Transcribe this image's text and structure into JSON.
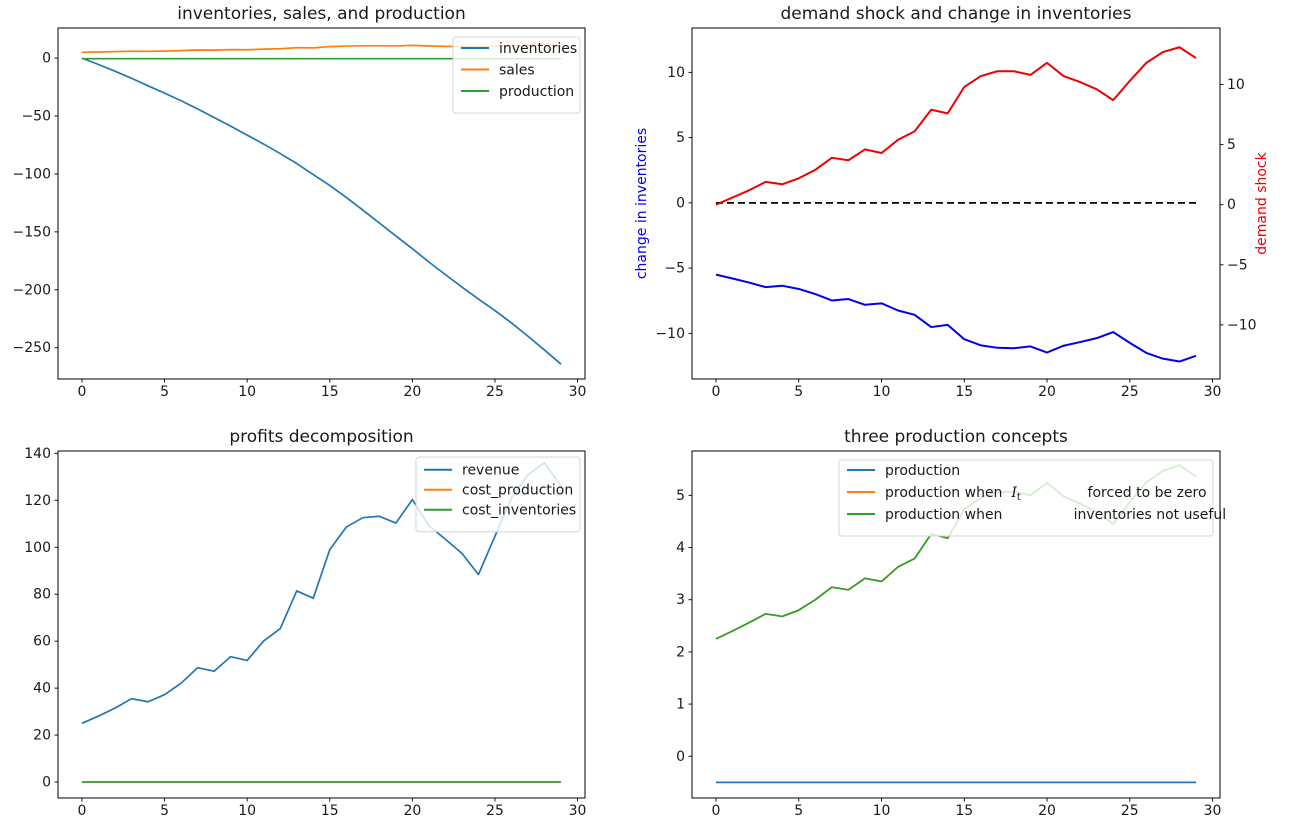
{
  "figure": {
    "background": "#ffffff"
  },
  "colors": {
    "tab_blue": "#1f77b4",
    "tab_orange": "#ff7f0e",
    "tab_green": "#2ca02c",
    "pure_blue": "#0000ee",
    "pure_red": "#ee0000",
    "black": "#000000",
    "axis_text": "#1a1a1a",
    "legend_border": "#d4d4d4"
  },
  "chart_data": [
    {
      "id": "top_left",
      "pos": "tl",
      "type": "line",
      "title": "inventories, sales, and production",
      "x": [
        0,
        1,
        2,
        3,
        4,
        5,
        6,
        7,
        8,
        9,
        10,
        11,
        12,
        13,
        14,
        15,
        16,
        17,
        18,
        19,
        20,
        21,
        22,
        23,
        24,
        25,
        26,
        27,
        28,
        29
      ],
      "xlim": [
        -1.45,
        30.45
      ],
      "ylim": [
        -277,
        26
      ],
      "xticks": [
        0,
        5,
        10,
        15,
        20,
        25,
        30
      ],
      "yticks": [
        0,
        -50,
        -100,
        -150,
        -200,
        -250
      ],
      "series": [
        {
          "name": "inventories",
          "color": "#1f77b4",
          "values": [
            0,
            -5.5,
            -11.3,
            -17.4,
            -23.9,
            -30.2,
            -36.8,
            -43.8,
            -51.3,
            -58.7,
            -66.5,
            -74.2,
            -82.4,
            -91.0,
            -100.5,
            -109.9,
            -120.3,
            -131.2,
            -142.3,
            -153.5,
            -164.5,
            -176.0,
            -186.9,
            -197.6,
            -208.0,
            -217.9,
            -228.6,
            -240.1,
            -252.0,
            -264.2
          ]
        },
        {
          "name": "sales",
          "color": "#ff7f0e",
          "values": [
            5.0,
            5.3,
            5.61,
            5.96,
            5.85,
            6.1,
            6.49,
            6.98,
            6.87,
            7.31,
            7.2,
            7.75,
            8.08,
            9.02,
            8.85,
            9.95,
            10.42,
            10.61,
            10.64,
            10.5,
            10.97,
            10.45,
            10.17,
            9.87,
            9.4,
            10.23,
            11.0,
            11.44,
            11.66,
            11.22
          ]
        },
        {
          "name": "production",
          "color": "#2ca02c",
          "constant": -0.5
        }
      ],
      "legend": {
        "position": "upper right",
        "items": [
          {
            "label": "inventories",
            "color": "#1f77b4"
          },
          {
            "label": "sales",
            "color": "#ff7f0e"
          },
          {
            "label": "production",
            "color": "#2ca02c"
          }
        ]
      }
    },
    {
      "id": "top_right",
      "pos": "tr",
      "type": "line",
      "title": "demand shock and change in inventories",
      "x": [
        0,
        1,
        2,
        3,
        4,
        5,
        6,
        7,
        8,
        9,
        10,
        11,
        12,
        13,
        14,
        15,
        16,
        17,
        18,
        19,
        20,
        21,
        22,
        23,
        24,
        25,
        26,
        27,
        28,
        29
      ],
      "xlim": [
        -1.45,
        30.45
      ],
      "ylim_left": [
        -13.5,
        13.4
      ],
      "ylim_right": [
        -14.5,
        14.7
      ],
      "xticks": [
        0,
        5,
        10,
        15,
        20,
        25,
        30
      ],
      "yticks_left": [
        10,
        5,
        0,
        -5,
        -10
      ],
      "yticks_right": [
        10,
        5,
        0,
        -5,
        -10
      ],
      "ylabel_left": {
        "text": "change in inventories",
        "color": "#0000ee"
      },
      "ylabel_right": {
        "text": "demand shock",
        "color": "#ee0000"
      },
      "series": [
        {
          "name": "change in inventories",
          "color": "#0000ee",
          "axis": "left",
          "width": 2,
          "values": [
            -5.5,
            -5.8,
            -6.11,
            -6.46,
            -6.35,
            -6.6,
            -6.99,
            -7.48,
            -7.37,
            -7.81,
            -7.7,
            -8.25,
            -8.58,
            -9.52,
            -9.35,
            -10.45,
            -10.92,
            -11.11,
            -11.14,
            -11.0,
            -11.47,
            -10.95,
            -10.67,
            -10.37,
            -9.9,
            -10.73,
            -11.5,
            -11.94,
            -12.16,
            -11.72
          ]
        },
        {
          "name": "zero line",
          "color": "#000000",
          "axis": "left",
          "dash": true,
          "width": 1.8,
          "constant": 0
        },
        {
          "name": "demand shock",
          "color": "#ee0000",
          "axis": "right",
          "width": 2,
          "values": [
            0,
            0.6,
            1.2,
            1.9,
            1.7,
            2.2,
            2.9,
            3.9,
            3.7,
            4.6,
            4.3,
            5.4,
            6.1,
            7.9,
            7.6,
            9.8,
            10.7,
            11.1,
            11.1,
            10.8,
            11.8,
            10.7,
            10.2,
            9.6,
            8.7,
            10.3,
            11.8,
            12.7,
            13.1,
            12.2
          ]
        }
      ]
    },
    {
      "id": "bottom_left",
      "pos": "bl",
      "type": "line",
      "title": "profits decomposition",
      "x": [
        0,
        1,
        2,
        3,
        4,
        5,
        6,
        7,
        8,
        9,
        10,
        11,
        12,
        13,
        14,
        15,
        16,
        17,
        18,
        19,
        20,
        21,
        22,
        23,
        24,
        25,
        26,
        27,
        28,
        29
      ],
      "xlim": [
        -1.45,
        30.45
      ],
      "ylim": [
        -6.8,
        141
      ],
      "xticks": [
        0,
        5,
        10,
        15,
        20,
        25,
        30
      ],
      "yticks": [
        0,
        20,
        40,
        60,
        80,
        100,
        120,
        140
      ],
      "series": [
        {
          "name": "revenue",
          "color": "#1f77b4",
          "values": [
            25.0,
            28.1,
            31.5,
            35.5,
            34.2,
            37.2,
            42.1,
            48.7,
            47.2,
            53.4,
            51.8,
            60.1,
            65.3,
            81.4,
            78.3,
            99.0,
            108.6,
            112.6,
            113.2,
            110.3,
            120.3,
            109.2,
            103.4,
            97.4,
            88.4,
            104.7,
            121.0,
            130.9,
            136.0,
            125.9
          ]
        },
        {
          "name": "cost_production",
          "color": "#ff7f0e",
          "constant": 0
        },
        {
          "name": "cost_inventories",
          "color": "#2ca02c",
          "constant": 0
        }
      ],
      "legend": {
        "position": "upper right",
        "items": [
          {
            "label": "revenue",
            "color": "#1f77b4"
          },
          {
            "label": "cost_production",
            "color": "#ff7f0e"
          },
          {
            "label": "cost_inventories",
            "color": "#2ca02c"
          }
        ]
      }
    },
    {
      "id": "bottom_right",
      "pos": "br",
      "type": "line",
      "title": "three production concepts",
      "x": [
        0,
        1,
        2,
        3,
        4,
        5,
        6,
        7,
        8,
        9,
        10,
        11,
        12,
        13,
        14,
        15,
        16,
        17,
        18,
        19,
        20,
        21,
        22,
        23,
        24,
        25,
        26,
        27,
        28,
        29
      ],
      "xlim": [
        -1.45,
        30.45
      ],
      "ylim": [
        -0.8,
        5.85
      ],
      "xticks": [
        0,
        5,
        10,
        15,
        20,
        25,
        30
      ],
      "yticks": [
        0,
        1,
        2,
        3,
        4,
        5
      ],
      "series": [
        {
          "name": "production",
          "color": "#1f77b4",
          "constant": -0.5
        },
        {
          "name": "production when It forced to be zero",
          "color": "#ff7f0e",
          "values": [
            2.25,
            2.4,
            2.56,
            2.73,
            2.68,
            2.8,
            3.0,
            3.24,
            3.19,
            3.41,
            3.35,
            3.63,
            3.79,
            4.26,
            4.18,
            4.73,
            4.96,
            5.06,
            5.07,
            5.0,
            5.24,
            4.98,
            4.84,
            4.69,
            4.45,
            4.87,
            5.25,
            5.47,
            5.58,
            5.36
          ]
        },
        {
          "name": "production when inventories not useful",
          "color": "#2ca02c",
          "values": [
            2.25,
            2.4,
            2.56,
            2.73,
            2.68,
            2.8,
            3.0,
            3.24,
            3.19,
            3.41,
            3.35,
            3.63,
            3.79,
            4.26,
            4.18,
            4.73,
            4.96,
            5.06,
            5.07,
            5.0,
            5.24,
            4.98,
            4.84,
            4.69,
            4.45,
            4.87,
            5.25,
            5.47,
            5.58,
            5.36
          ]
        }
      ],
      "legend": {
        "position": "upper right",
        "items": [
          {
            "label": "production",
            "color": "#1f77b4"
          },
          {
            "label": "production when  $I_t$               forced to be zero",
            "color": "#ff7f0e"
          },
          {
            "label": "production when                inventories not useful",
            "color": "#2ca02c"
          }
        ]
      }
    }
  ]
}
